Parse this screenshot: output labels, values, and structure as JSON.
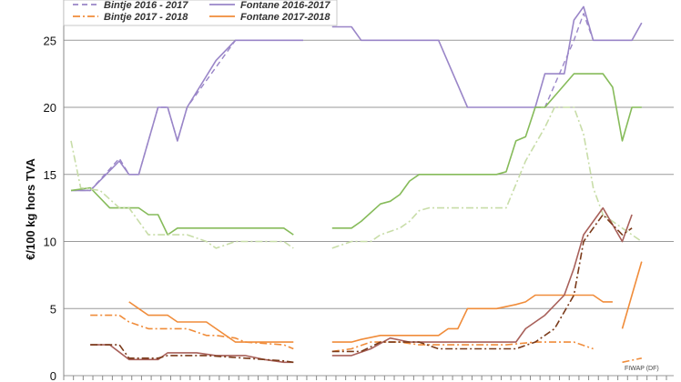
{
  "chart_data": {
    "type": "line",
    "ylabel": "€/100 kg hors TVA",
    "xlabel": "",
    "ylim": [
      0,
      28
    ],
    "yticks": [
      0,
      5,
      10,
      15,
      20,
      25
    ],
    "x_count": 62,
    "grid": "horizontal",
    "legend_position": "top",
    "legend": [
      {
        "label": "Bintje 2016 - 2017",
        "color": "#9a86c8",
        "dash": "dash"
      },
      {
        "label": "Fontane 2016-2017",
        "color": "#9a86c8",
        "dash": "solid"
      },
      {
        "label": "Bintje 2017 - 2018",
        "color": "#f08c3a",
        "dash": "dashdot"
      },
      {
        "label": "Fontane 2017-2018",
        "color": "#f08c3a",
        "dash": "solid"
      }
    ],
    "credit": "FIWAP (DF)",
    "series": [
      {
        "name": "Bintje 2016 - 2017",
        "color": "#9a86c8",
        "dash": "6,4",
        "width": 1.4,
        "points": [
          [
            0,
            13.8
          ],
          [
            2,
            13.8
          ],
          [
            5,
            16.2
          ],
          [
            6,
            15
          ],
          [
            7,
            15
          ],
          [
            9,
            20
          ],
          [
            10,
            20
          ],
          [
            11,
            17.5
          ],
          [
            12,
            20
          ],
          [
            15,
            23
          ],
          [
            17,
            25
          ],
          [
            22,
            25
          ],
          [
            23,
            25
          ],
          [
            24,
            25
          ]
        ]
      },
      {
        "name": "Fontane 2016-2017",
        "color": "#9a86c8",
        "dash": "",
        "width": 1.6,
        "points": [
          [
            0,
            13.8
          ],
          [
            2,
            13.8
          ],
          [
            5,
            16
          ],
          [
            6,
            15
          ],
          [
            7,
            15
          ],
          [
            9,
            20
          ],
          [
            10,
            20
          ],
          [
            11,
            17.5
          ],
          [
            12,
            20
          ],
          [
            15,
            23.5
          ],
          [
            17,
            25
          ],
          [
            22,
            25
          ],
          [
            23,
            25
          ],
          [
            24,
            25
          ]
        ]
      },
      {
        "name": "Fontane 2016-2017 b",
        "color": "#9a86c8",
        "dash": "",
        "width": 1.6,
        "points": [
          [
            27,
            26
          ],
          [
            29,
            26
          ],
          [
            30,
            25
          ],
          [
            38,
            25
          ],
          [
            41,
            20
          ],
          [
            48,
            20
          ],
          [
            49,
            22.5
          ],
          [
            51,
            22.5
          ],
          [
            52,
            26.5
          ],
          [
            53,
            27.5
          ],
          [
            54,
            25
          ],
          [
            58,
            25
          ],
          [
            59,
            26.3
          ]
        ]
      },
      {
        "name": "Bintje 2016 - 2017 b",
        "color": "#9a86c8",
        "dash": "6,4",
        "width": 1.4,
        "points": [
          [
            48,
            20
          ],
          [
            49,
            20
          ],
          [
            52,
            25
          ],
          [
            53,
            27
          ],
          [
            54,
            25
          ]
        ]
      },
      {
        "name": "Green solid 1",
        "color": "#86bb5a",
        "dash": "",
        "width": 1.6,
        "points": [
          [
            0,
            13.8
          ],
          [
            2,
            14
          ],
          [
            4,
            12.5
          ],
          [
            7,
            12.5
          ],
          [
            8,
            12
          ],
          [
            9,
            12
          ],
          [
            10,
            10.5
          ],
          [
            11,
            11
          ],
          [
            14,
            11
          ],
          [
            21,
            11
          ],
          [
            22,
            11
          ],
          [
            23,
            10.5
          ]
        ]
      },
      {
        "name": "Green solid 2",
        "color": "#86bb5a",
        "dash": "",
        "width": 1.6,
        "points": [
          [
            27,
            11
          ],
          [
            29,
            11
          ],
          [
            30,
            11.5
          ],
          [
            32,
            12.8
          ],
          [
            33,
            13
          ],
          [
            34,
            13.5
          ],
          [
            35,
            14.5
          ],
          [
            36,
            15
          ],
          [
            42,
            15
          ],
          [
            44,
            15
          ],
          [
            45,
            15.2
          ],
          [
            46,
            17.5
          ],
          [
            47,
            17.8
          ],
          [
            48,
            20
          ],
          [
            49,
            20
          ],
          [
            52,
            22.5
          ],
          [
            55,
            22.5
          ],
          [
            56,
            21.5
          ],
          [
            57,
            17.5
          ],
          [
            58,
            20
          ],
          [
            59,
            20
          ]
        ]
      },
      {
        "name": "Green dashed 1",
        "color": "#c8dda8",
        "dash": "8,3,2,3",
        "width": 1.6,
        "points": [
          [
            0,
            17.5
          ],
          [
            1,
            14
          ],
          [
            3,
            13.8
          ],
          [
            5,
            12.5
          ],
          [
            6,
            12.5
          ],
          [
            8,
            10.5
          ],
          [
            12,
            10.5
          ],
          [
            14,
            10
          ],
          [
            15,
            9.5
          ],
          [
            17,
            10
          ],
          [
            22,
            10
          ],
          [
            23,
            9.5
          ]
        ]
      },
      {
        "name": "Green dashed 2",
        "color": "#c8dda8",
        "dash": "8,3,2,3",
        "width": 1.6,
        "points": [
          [
            27,
            9.5
          ],
          [
            29,
            10
          ],
          [
            31,
            10
          ],
          [
            32,
            10.5
          ],
          [
            34,
            11
          ],
          [
            35,
            11.5
          ],
          [
            36,
            12.3
          ],
          [
            37,
            12.5
          ],
          [
            44,
            12.5
          ],
          [
            45,
            12.5
          ],
          [
            47,
            16
          ],
          [
            49,
            18.5
          ],
          [
            50,
            20
          ],
          [
            52,
            20
          ],
          [
            53,
            18
          ],
          [
            54,
            14
          ],
          [
            55,
            12
          ],
          [
            57,
            11
          ],
          [
            59,
            10
          ]
        ]
      },
      {
        "name": "Bintje 2017 - 2018",
        "color": "#f08c3a",
        "dash": "8,3,2,3",
        "width": 1.6,
        "points": [
          [
            2,
            4.5
          ],
          [
            5,
            4.5
          ],
          [
            6,
            4
          ],
          [
            8,
            3.5
          ],
          [
            12,
            3.5
          ],
          [
            14,
            3
          ],
          [
            15,
            3
          ],
          [
            17,
            2.8
          ],
          [
            18,
            2.5
          ],
          [
            22,
            2.3
          ],
          [
            23,
            2
          ]
        ]
      },
      {
        "name": "Bintje 2017 - 2018 b",
        "color": "#f08c3a",
        "dash": "8,3,2,3",
        "width": 1.6,
        "points": [
          [
            27,
            1.8
          ],
          [
            29,
            2
          ],
          [
            31,
            2.5
          ],
          [
            34,
            2.5
          ],
          [
            36,
            2.3
          ],
          [
            45,
            2.3
          ],
          [
            48,
            2.5
          ],
          [
            50,
            2.5
          ],
          [
            52,
            2.5
          ],
          [
            54,
            2
          ]
        ]
      },
      {
        "name": "Bintje 2017 - 2018 c",
        "color": "#f08c3a",
        "dash": "8,3,2,3",
        "width": 1.6,
        "points": [
          [
            57,
            1
          ],
          [
            59,
            1.3
          ]
        ]
      },
      {
        "name": "Fontane 2017-2018",
        "color": "#f08c3a",
        "dash": "",
        "width": 1.6,
        "points": [
          [
            6,
            5.5
          ],
          [
            7,
            5
          ],
          [
            8,
            4.5
          ],
          [
            10,
            4.5
          ],
          [
            11,
            4
          ],
          [
            14,
            4
          ],
          [
            15,
            3.5
          ],
          [
            17,
            2.5
          ],
          [
            22,
            2.5
          ],
          [
            23,
            2.5
          ]
        ]
      },
      {
        "name": "Fontane 2017-2018 b",
        "color": "#f08c3a",
        "dash": "",
        "width": 1.6,
        "points": [
          [
            27,
            2.5
          ],
          [
            29,
            2.5
          ],
          [
            30,
            2.7
          ],
          [
            32,
            3
          ],
          [
            37,
            3
          ],
          [
            38,
            3
          ],
          [
            39,
            3.5
          ],
          [
            40,
            3.5
          ],
          [
            41,
            5
          ],
          [
            44,
            5
          ],
          [
            46,
            5.3
          ],
          [
            47,
            5.5
          ],
          [
            48,
            6
          ],
          [
            54,
            6
          ],
          [
            55,
            5.5
          ],
          [
            56,
            5.5
          ]
        ]
      },
      {
        "name": "Fontane 2017-2018 c",
        "color": "#f08c3a",
        "dash": "",
        "width": 1.6,
        "points": [
          [
            57,
            3.5
          ],
          [
            58,
            6
          ],
          [
            59,
            8.5
          ]
        ]
      },
      {
        "name": "Dark red solid 1",
        "color": "#a8605a",
        "dash": "",
        "width": 1.6,
        "points": [
          [
            2,
            2.3
          ],
          [
            4,
            2.3
          ],
          [
            6,
            1.2
          ],
          [
            9,
            1.2
          ],
          [
            10,
            1.7
          ],
          [
            13,
            1.7
          ],
          [
            15,
            1.5
          ],
          [
            18,
            1.5
          ],
          [
            20,
            1.2
          ],
          [
            22,
            1
          ],
          [
            23,
            1
          ]
        ]
      },
      {
        "name": "Dark red solid 2",
        "color": "#a8605a",
        "dash": "",
        "width": 1.6,
        "points": [
          [
            27,
            1.5
          ],
          [
            29,
            1.5
          ],
          [
            31,
            2
          ],
          [
            33,
            2.8
          ],
          [
            35,
            2.5
          ],
          [
            37,
            2.5
          ],
          [
            38,
            2.5
          ],
          [
            44,
            2.5
          ],
          [
            46,
            2.5
          ],
          [
            47,
            3.5
          ],
          [
            49,
            4.5
          ],
          [
            51,
            6
          ],
          [
            52,
            8
          ],
          [
            53,
            10.5
          ],
          [
            55,
            12.5
          ],
          [
            57,
            10
          ],
          [
            58,
            12
          ]
        ]
      },
      {
        "name": "Dark brown dashdot 1",
        "color": "#7a3a1a",
        "dash": "8,3,2,3",
        "width": 1.6,
        "points": [
          [
            2,
            2.3
          ],
          [
            5,
            2.3
          ],
          [
            6,
            1.3
          ],
          [
            9,
            1.3
          ],
          [
            10,
            1.5
          ],
          [
            12,
            1.5
          ],
          [
            14,
            1.5
          ],
          [
            18,
            1.3
          ],
          [
            22,
            1.1
          ],
          [
            23,
            1
          ]
        ]
      },
      {
        "name": "Dark brown dashdot 2",
        "color": "#7a3a1a",
        "dash": "8,3,2,3",
        "width": 1.6,
        "points": [
          [
            27,
            1.8
          ],
          [
            30,
            1.8
          ],
          [
            32,
            2.5
          ],
          [
            36,
            2.5
          ],
          [
            38,
            2
          ],
          [
            44,
            2
          ],
          [
            46,
            2
          ],
          [
            48,
            2.5
          ],
          [
            50,
            3.5
          ],
          [
            52,
            6
          ],
          [
            53,
            10
          ],
          [
            55,
            12
          ],
          [
            57,
            10.5
          ],
          [
            58,
            11
          ]
        ]
      }
    ]
  }
}
